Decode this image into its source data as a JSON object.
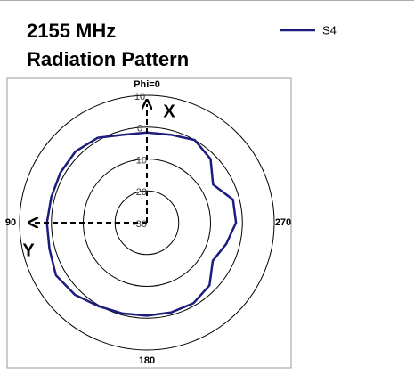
{
  "chart_data": {
    "type": "polar",
    "title": "2155 MHz",
    "subtitle": "Radiation Pattern",
    "theta": [
      0,
      15,
      30,
      45,
      60,
      75,
      90,
      105,
      120,
      135,
      150,
      165,
      180,
      195,
      210,
      225,
      240,
      255,
      270,
      285,
      300,
      315,
      330,
      345
    ],
    "series": [
      {
        "name": "S4",
        "color": "#1c1c7e",
        "values": [
          -1.7,
          -1.4,
          0.8,
          1.7,
          1.4,
          1.1,
          1.4,
          1.7,
          3,
          2,
          0.3,
          -0.5,
          -0.8,
          -0.8,
          -0.8,
          -2.2,
          -6.1,
          -4.2,
          -2,
          -2,
          -6,
          -1.7,
          0,
          -1.4
        ]
      }
    ],
    "rlim": [
      -30,
      10
    ],
    "rticks": [
      -30,
      -20,
      -10,
      0,
      10
    ],
    "angle_labels": [
      {
        "value": 0,
        "label": "Phi=0"
      },
      90,
      180,
      270
    ],
    "annotations": [
      "X",
      "Y"
    ],
    "legend": "top-right"
  }
}
